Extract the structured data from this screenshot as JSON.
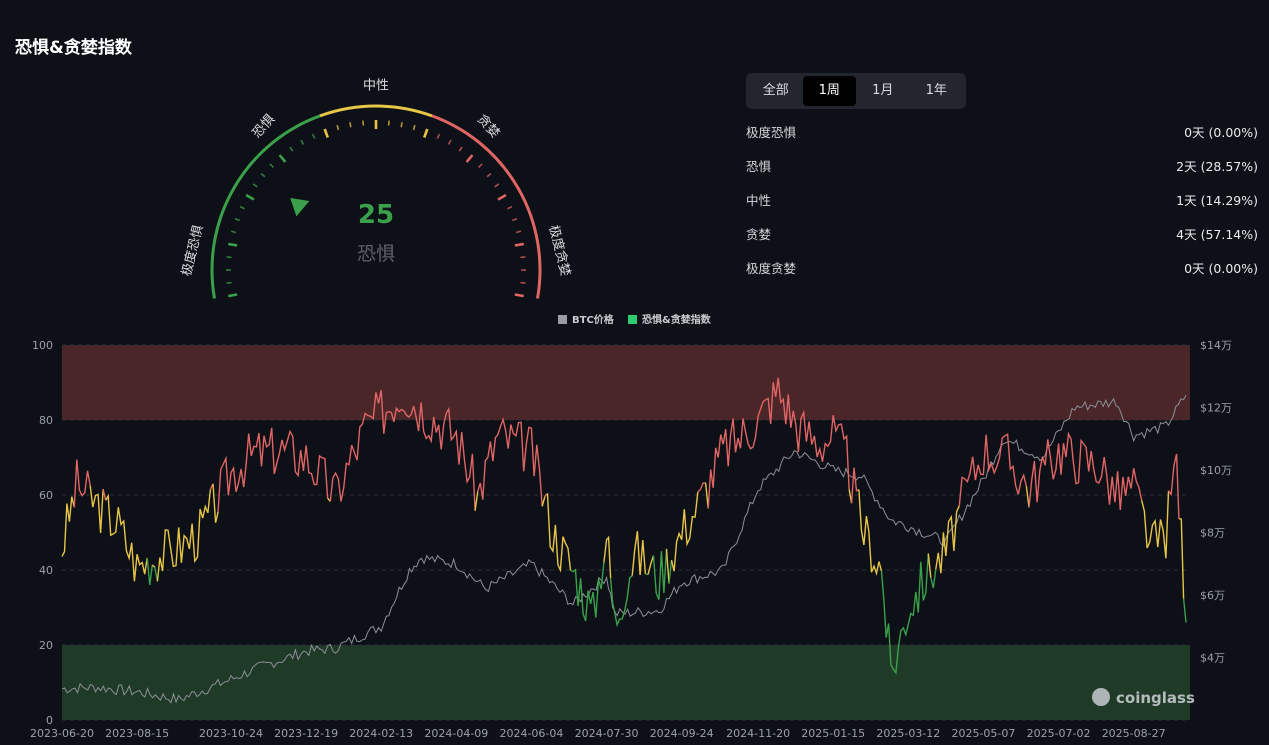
{
  "title": "恐惧&贪婪指数",
  "gauge": {
    "value": 25,
    "label": "恐惧",
    "zone_labels": [
      "极度恐惧",
      "恐惧",
      "中性",
      "贪婪",
      "极度贪婪"
    ],
    "colors": {
      "fear": "#3aa14a",
      "neutral": "#e8c547",
      "greed": "#e06565"
    }
  },
  "tabs": [
    {
      "label": "全部",
      "active": false
    },
    {
      "label": "1周",
      "active": true
    },
    {
      "label": "1月",
      "active": false
    },
    {
      "label": "1年",
      "active": false
    }
  ],
  "stats": [
    {
      "label": "极度恐惧",
      "value": "0天 (0.00%)"
    },
    {
      "label": "恐惧",
      "value": "2天 (28.57%)"
    },
    {
      "label": "中性",
      "value": "1天 (14.29%)"
    },
    {
      "label": "贪婪",
      "value": "4天 (57.14%)"
    },
    {
      "label": "极度贪婪",
      "value": "0天 (0.00%)"
    }
  ],
  "chart_data": {
    "type": "line",
    "legend": [
      {
        "name": "BTC价格",
        "color": "#9a9ca3"
      },
      {
        "name": "恐惧&贪婪指数",
        "color": "#2ecc71"
      }
    ],
    "x_ticks": [
      "2023-06-20",
      "2023-08-15",
      "2023-10-24",
      "2023-12-19",
      "2024-02-13",
      "2024-04-09",
      "2024-06-04",
      "2024-07-30",
      "2024-09-24",
      "2024-11-20",
      "2025-01-15",
      "2025-03-12",
      "2025-05-07",
      "2025-07-02",
      "2025-08-27"
    ],
    "y_left_ticks": [
      "0",
      "20",
      "40",
      "60",
      "80",
      "100"
    ],
    "y_right_ticks": [
      "$4万",
      "$6万",
      "$8万",
      "$10万",
      "$12万",
      "$14万"
    ],
    "ylim_left": [
      0,
      100
    ],
    "ylim_right_note": "$2万-$14万",
    "zones": {
      "extreme_fear": [
        0,
        20
      ],
      "extreme_greed": [
        80,
        100
      ]
    },
    "watermark": "coinglass",
    "series": [
      {
        "name": "恐惧&贪婪指数",
        "x": [
          "2023-06-20",
          "2023-07-01",
          "2023-07-15",
          "2023-08-01",
          "2023-08-15",
          "2023-09-01",
          "2023-09-15",
          "2023-10-01",
          "2023-10-24",
          "2023-11-10",
          "2023-12-01",
          "2023-12-19",
          "2024-01-10",
          "2024-02-01",
          "2024-02-13",
          "2024-03-01",
          "2024-03-10",
          "2024-03-25",
          "2024-04-09",
          "2024-04-25",
          "2024-05-10",
          "2024-06-04",
          "2024-06-20",
          "2024-07-05",
          "2024-07-20",
          "2024-07-30",
          "2024-08-05",
          "2024-08-20",
          "2024-09-07",
          "2024-09-24",
          "2024-10-10",
          "2024-10-25",
          "2024-11-05",
          "2024-11-20",
          "2024-12-05",
          "2024-12-20",
          "2025-01-05",
          "2025-01-15",
          "2025-01-25",
          "2025-02-05",
          "2025-02-20",
          "2025-02-27",
          "2025-03-12",
          "2025-03-25",
          "2025-04-09",
          "2025-04-25",
          "2025-05-07",
          "2025-05-25",
          "2025-06-10",
          "2025-07-02",
          "2025-07-15",
          "2025-08-01",
          "2025-08-15",
          "2025-08-27",
          "2025-09-10",
          "2025-09-20",
          "2025-09-28",
          "2025-10-05"
        ],
        "values": [
          46,
          63,
          58,
          52,
          41,
          44,
          46,
          50,
          66,
          71,
          72,
          70,
          60,
          78,
          82,
          88,
          84,
          80,
          76,
          60,
          76,
          72,
          50,
          40,
          28,
          50,
          26,
          45,
          38,
          50,
          60,
          72,
          75,
          80,
          88,
          78,
          74,
          76,
          70,
          52,
          40,
          12,
          30,
          38,
          45,
          62,
          72,
          70,
          62,
          72,
          70,
          68,
          60,
          62,
          46,
          50,
          70,
          26
        ]
      },
      {
        "name": "BTC价格",
        "unit": "USD",
        "x": [
          "2023-06-20",
          "2023-07-15",
          "2023-08-15",
          "2023-09-15",
          "2023-10-24",
          "2023-11-15",
          "2023-12-19",
          "2024-01-10",
          "2024-02-13",
          "2024-03-05",
          "2024-03-14",
          "2024-04-09",
          "2024-05-01",
          "2024-06-04",
          "2024-07-05",
          "2024-07-30",
          "2024-08-05",
          "2024-09-07",
          "2024-09-24",
          "2024-10-25",
          "2024-11-20",
          "2024-12-17",
          "2025-01-15",
          "2025-02-05",
          "2025-02-27",
          "2025-03-12",
          "2025-04-09",
          "2025-05-07",
          "2025-05-22",
          "2025-06-20",
          "2025-07-14",
          "2025-08-14",
          "2025-08-27",
          "2025-09-20",
          "2025-10-05"
        ],
        "values": [
          30000,
          30500,
          29000,
          26500,
          33000,
          37000,
          42000,
          43000,
          50000,
          68000,
          72000,
          70000,
          62000,
          70000,
          57000,
          66000,
          54000,
          55000,
          64000,
          68000,
          94000,
          106000,
          100000,
          98000,
          84000,
          82000,
          77000,
          97000,
          110000,
          104000,
          120000,
          122000,
          111000,
          114000,
          124000
        ]
      }
    ]
  }
}
